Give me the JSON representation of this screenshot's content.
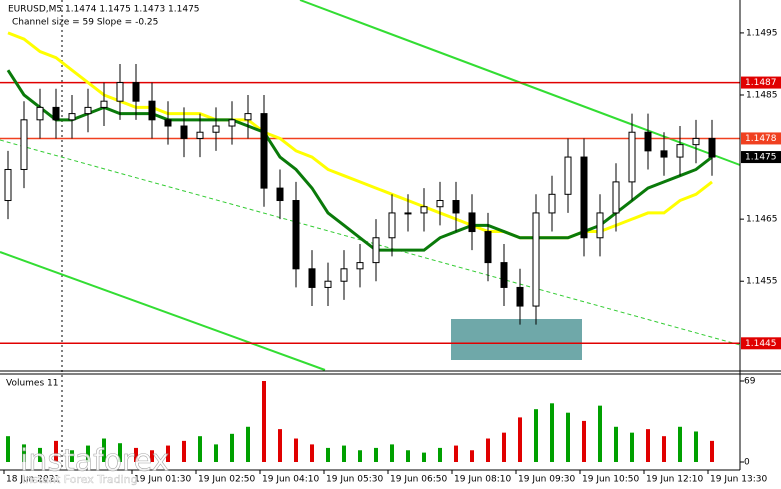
{
  "chart_data": {
    "type": "candlestick",
    "header": "EURUSD,M5  1.1474 1.1475 1.1473 1.1475",
    "subheader": "Channel size = 59 Slope = -0.25",
    "ylim": [
      1.14407,
      1.15003
    ],
    "yticks": [
      1.1495,
      1.1485,
      1.1465,
      1.1455
    ],
    "open": [
      1.1468,
      1.1473,
      1.1481,
      1.1483,
      1.1481,
      1.1482,
      1.1483,
      1.1484,
      1.1487,
      1.1484,
      1.1481,
      1.148,
      1.1478,
      1.1479,
      1.148,
      1.1481,
      1.1482,
      1.147,
      1.1468,
      1.1457,
      1.1454,
      1.1455,
      1.1457,
      1.1458,
      1.1462,
      1.1466,
      1.1466,
      1.1467,
      1.1468,
      1.1466,
      1.1463,
      1.1458,
      1.1454,
      1.1451,
      1.1466,
      1.1469,
      1.1475,
      1.1462,
      1.1466,
      1.1471,
      1.1479,
      1.1476,
      1.1475,
      1.1477,
      1.1478
    ],
    "high": [
      1.1476,
      1.1484,
      1.1486,
      1.1486,
      1.1485,
      1.1486,
      1.1487,
      1.149,
      1.149,
      1.1487,
      1.1484,
      1.1483,
      1.1482,
      1.1483,
      1.1484,
      1.1485,
      1.1485,
      1.1473,
      1.1471,
      1.146,
      1.1458,
      1.146,
      1.1461,
      1.1465,
      1.1469,
      1.1469,
      1.147,
      1.1471,
      1.1471,
      1.1469,
      1.1466,
      1.1461,
      1.1457,
      1.1469,
      1.1472,
      1.1478,
      1.1478,
      1.1469,
      1.1474,
      1.1482,
      1.1482,
      1.1479,
      1.148,
      1.1481,
      1.1481
    ],
    "low": [
      1.1465,
      1.147,
      1.1478,
      1.1478,
      1.1478,
      1.1479,
      1.148,
      1.1481,
      1.1481,
      1.1478,
      1.1477,
      1.1475,
      1.1475,
      1.1476,
      1.1477,
      1.1478,
      1.1467,
      1.1465,
      1.1454,
      1.1451,
      1.1451,
      1.1452,
      1.1454,
      1.1455,
      1.1459,
      1.1463,
      1.1463,
      1.1464,
      1.1463,
      1.146,
      1.1455,
      1.1451,
      1.1448,
      1.1448,
      1.1463,
      1.1466,
      1.1459,
      1.1459,
      1.1463,
      1.1468,
      1.1473,
      1.1472,
      1.1472,
      1.1474,
      1.1472
    ],
    "close": [
      1.1473,
      1.1481,
      1.1483,
      1.1481,
      1.1482,
      1.1483,
      1.1484,
      1.1487,
      1.1484,
      1.1481,
      1.148,
      1.1478,
      1.1479,
      1.148,
      1.1481,
      1.1482,
      1.147,
      1.1468,
      1.1457,
      1.1454,
      1.1455,
      1.1457,
      1.1458,
      1.1462,
      1.1466,
      1.1466,
      1.1467,
      1.1468,
      1.1466,
      1.1463,
      1.1458,
      1.1454,
      1.1451,
      1.1466,
      1.1469,
      1.1475,
      1.1462,
      1.1466,
      1.1471,
      1.1479,
      1.1476,
      1.1475,
      1.1477,
      1.1478,
      1.1475
    ],
    "series": [
      {
        "color": "#ffff00",
        "values": [
          1.1495,
          1.1494,
          1.1492,
          1.1491,
          1.1489,
          1.1487,
          1.1485,
          1.1484,
          1.1483,
          1.1483,
          1.1482,
          1.1482,
          1.1482,
          1.1481,
          1.1481,
          1.1481,
          1.1479,
          1.1478,
          1.1476,
          1.1475,
          1.1473,
          1.1472,
          1.1471,
          1.147,
          1.1469,
          1.1468,
          1.1467,
          1.1466,
          1.1465,
          1.1464,
          1.1463,
          1.1463,
          1.1462,
          1.1462,
          1.1462,
          1.1462,
          1.1463,
          1.1463,
          1.1464,
          1.1465,
          1.1466,
          1.1466,
          1.1468,
          1.1469,
          1.1471
        ]
      },
      {
        "color": "#0a7a0a",
        "values": [
          1.1489,
          1.1485,
          1.1483,
          1.1481,
          1.1481,
          1.1482,
          1.1483,
          1.1482,
          1.1482,
          1.1482,
          1.1481,
          1.1481,
          1.1481,
          1.1481,
          1.1481,
          1.148,
          1.1479,
          1.1475,
          1.1473,
          1.147,
          1.1466,
          1.1464,
          1.1462,
          1.146,
          1.146,
          1.146,
          1.146,
          1.1462,
          1.1463,
          1.1464,
          1.1464,
          1.1463,
          1.1462,
          1.1462,
          1.1462,
          1.1462,
          1.1463,
          1.1464,
          1.1466,
          1.1468,
          1.147,
          1.1471,
          1.1472,
          1.1473,
          1.1475
        ]
      }
    ],
    "levels": [
      {
        "value": 1.1487,
        "color": "#e00000"
      },
      {
        "value": 1.1478,
        "color": "#f04020"
      },
      {
        "value": 1.1445,
        "color": "#e00000"
      }
    ],
    "current_price": 1.1475,
    "volume_title": "Volumes 11",
    "volume_ylim": [
      0,
      69
    ],
    "volume_yticks": [
      0,
      69
    ],
    "volumes": [
      22,
      15,
      12,
      18,
      10,
      14,
      20,
      16,
      12,
      10,
      14,
      18,
      22,
      15,
      24,
      30,
      69,
      28,
      20,
      15,
      12,
      14,
      10,
      12,
      15,
      10,
      8,
      12,
      14,
      10,
      20,
      25,
      38,
      45,
      50,
      42,
      35,
      48,
      30,
      25,
      28,
      22,
      30,
      26,
      18
    ],
    "xlabels": [
      "18 Jun 2021",
      "19 Jun 01:30",
      "19 Jun 02:50",
      "19 Jun 04:10",
      "19 Jun 05:30",
      "19 Jun 06:50",
      "19 Jun 08:10",
      "19 Jun 09:30",
      "19 Jun 10:50",
      "19 Jun 12:10",
      "19 Jun 13:30"
    ],
    "watermark": "instaforex",
    "watermark_sub": "Instant Forex Trading"
  }
}
